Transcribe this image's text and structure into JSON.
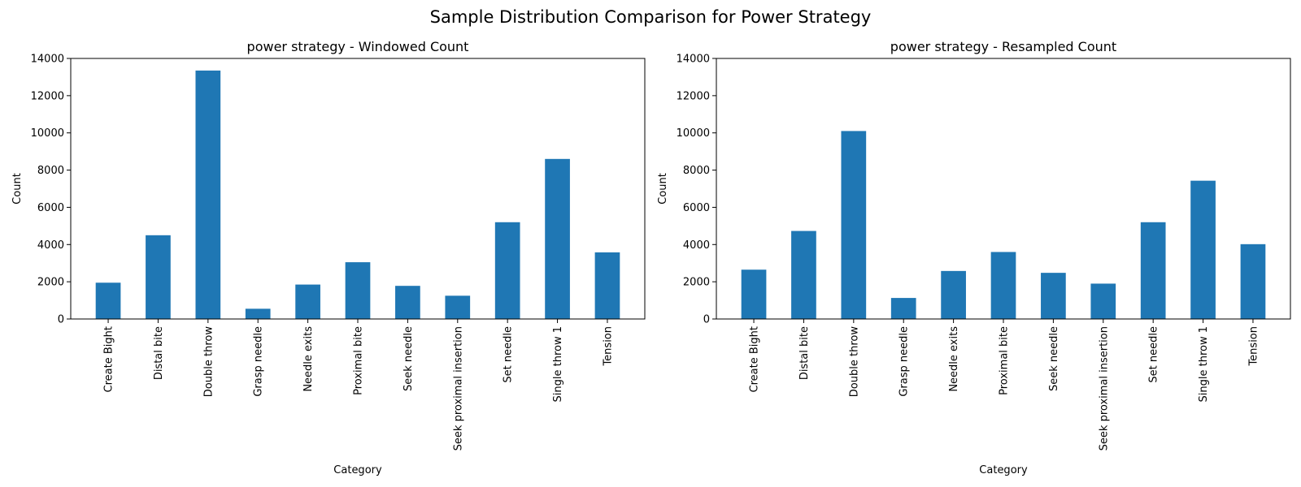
{
  "figure": {
    "suptitle": "Sample Distribution Comparison for Power Strategy"
  },
  "chart_data": [
    {
      "type": "bar",
      "title": "power strategy - Windowed Count",
      "xlabel": "Category",
      "ylabel": "Count",
      "ylim": [
        0,
        14000
      ],
      "yticks": [
        0,
        2000,
        4000,
        6000,
        8000,
        10000,
        12000,
        14000
      ],
      "grid": false,
      "color": "#1f77b4",
      "categories": [
        "Create Bight",
        "Distal bite",
        "Double throw",
        "Grasp needle",
        "Needle exits",
        "Proximal bite",
        "Seek needle",
        "Seek proximal insertion",
        "Set needle",
        "Single throw 1",
        "Tension"
      ],
      "values": [
        1950,
        4500,
        13350,
        550,
        1850,
        3050,
        1780,
        1250,
        5200,
        8600,
        3580
      ]
    },
    {
      "type": "bar",
      "title": "power strategy - Resampled Count",
      "xlabel": "Category",
      "ylabel": "Count",
      "ylim": [
        0,
        14000
      ],
      "yticks": [
        0,
        2000,
        4000,
        6000,
        8000,
        10000,
        12000,
        14000
      ],
      "grid": false,
      "color": "#1f77b4",
      "categories": [
        "Create Bight",
        "Distal bite",
        "Double throw",
        "Grasp needle",
        "Needle exits",
        "Proximal bite",
        "Seek needle",
        "Seek proximal insertion",
        "Set needle",
        "Single throw 1",
        "Tension"
      ],
      "values": [
        2650,
        4730,
        10100,
        1130,
        2580,
        3600,
        2480,
        1900,
        5200,
        7430,
        4020
      ]
    }
  ]
}
